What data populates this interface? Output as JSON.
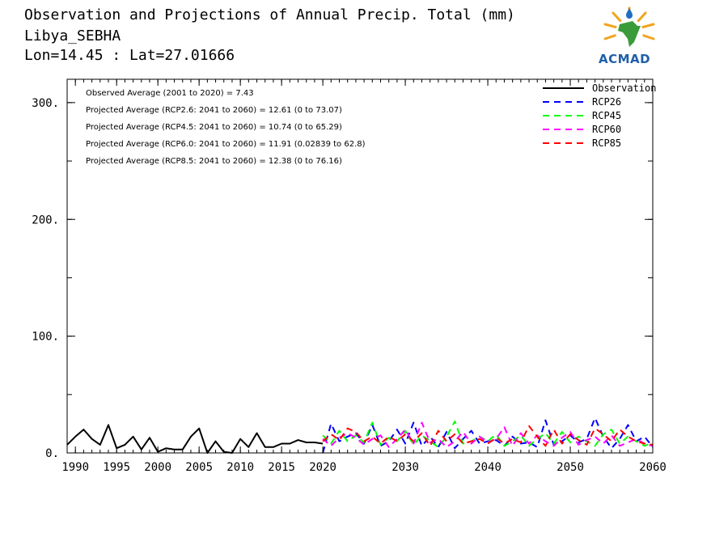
{
  "header": {
    "title": "Observation and Projections of Annual Precip. Total (mm)",
    "location": "Libya_SEBHA",
    "coords": "Lon=14.45 : Lat=27.01666"
  },
  "logo": {
    "text": "ACMAD"
  },
  "chart_data": {
    "type": "line",
    "title": "Observation and Projections of Annual Precip. Total (mm)",
    "xlim": [
      1989,
      2060
    ],
    "ylim": [
      0,
      320
    ],
    "xticks": [
      1990,
      1995,
      2000,
      2005,
      2010,
      2015,
      2020,
      2030,
      2040,
      2050,
      2060
    ],
    "yticks": [
      0,
      100,
      200,
      300
    ],
    "ytick_labels": [
      "0.",
      "100.",
      "200.",
      "300."
    ],
    "legend_position": "top-right",
    "annotations": [
      "Observed Average (2001 to 2020) = 7.43",
      "Projected Average (RCP2.6: 2041 to 2060) = 12.61 (0 to 73.07)",
      "Projected Average (RCP4.5: 2041 to 2060) = 10.74 (0 to 65.29)",
      "Projected Average (RCP6.0: 2041 to 2060) = 11.91 (0.02839 to 62.8)",
      "Projected Average (RCP8.5: 2041 to 2060) = 12.38 (0 to 76.16)"
    ],
    "series": [
      {
        "name": "Observation",
        "color": "#000000",
        "dashed": false,
        "x": [
          1989,
          1990,
          1991,
          1992,
          1993,
          1994,
          1995,
          1996,
          1997,
          1998,
          1999,
          2000,
          2001,
          2002,
          2003,
          2004,
          2005,
          2006,
          2007,
          2008,
          2009,
          2010,
          2011,
          2012,
          2013,
          2014,
          2015,
          2016,
          2017,
          2018,
          2019,
          2020
        ],
        "y": [
          7,
          14,
          20,
          12,
          7,
          24,
          4,
          7,
          14,
          3,
          13,
          1,
          4,
          3,
          3,
          14,
          21,
          0,
          10,
          1,
          0,
          12,
          5,
          17,
          5,
          5,
          8,
          8,
          11,
          9,
          9,
          8
        ]
      },
      {
        "name": "RCP26",
        "color": "#0000ff",
        "dashed": true,
        "x": [
          2020,
          2021,
          2022,
          2023,
          2024,
          2025,
          2026,
          2027,
          2028,
          2029,
          2030,
          2031,
          2032,
          2033,
          2034,
          2035,
          2036,
          2037,
          2038,
          2039,
          2040,
          2041,
          2042,
          2043,
          2044,
          2045,
          2046,
          2047,
          2048,
          2049,
          2050,
          2051,
          2052,
          2053,
          2054,
          2055,
          2056,
          2057,
          2058,
          2059,
          2060
        ],
        "y": [
          0,
          25,
          10,
          14,
          17,
          8,
          24,
          6,
          10,
          20,
          8,
          26,
          6,
          14,
          5,
          18,
          4,
          12,
          19,
          8,
          10,
          11,
          6,
          14,
          8,
          9,
          5,
          28,
          7,
          10,
          15,
          9,
          12,
          30,
          14,
          4,
          12,
          24,
          10,
          14,
          5
        ]
      },
      {
        "name": "RCP45",
        "color": "#00ff00",
        "dashed": true,
        "x": [
          2020,
          2021,
          2022,
          2023,
          2024,
          2025,
          2026,
          2027,
          2028,
          2029,
          2030,
          2031,
          2032,
          2033,
          2034,
          2035,
          2036,
          2037,
          2038,
          2039,
          2040,
          2041,
          2042,
          2043,
          2044,
          2045,
          2046,
          2047,
          2048,
          2049,
          2050,
          2051,
          2052,
          2053,
          2054,
          2055,
          2056,
          2057,
          2058,
          2059,
          2060
        ],
        "y": [
          15,
          8,
          19,
          10,
          15,
          9,
          26,
          7,
          13,
          10,
          19,
          7,
          15,
          10,
          5,
          14,
          27,
          8,
          10,
          14,
          10,
          16,
          6,
          10,
          15,
          6,
          12,
          17,
          8,
          18,
          9,
          14,
          10,
          6,
          16,
          20,
          8,
          14,
          10,
          6,
          9
        ]
      },
      {
        "name": "RCP60",
        "color": "#ff00ff",
        "dashed": true,
        "x": [
          2020,
          2021,
          2022,
          2023,
          2024,
          2025,
          2026,
          2027,
          2028,
          2029,
          2030,
          2031,
          2032,
          2033,
          2034,
          2035,
          2036,
          2037,
          2038,
          2039,
          2040,
          2041,
          2042,
          2043,
          2044,
          2045,
          2046,
          2047,
          2048,
          2049,
          2050,
          2051,
          2052,
          2053,
          2054,
          2055,
          2056,
          2057,
          2058,
          2059,
          2060
        ],
        "y": [
          12,
          6,
          13,
          17,
          13,
          7,
          12,
          15,
          5,
          12,
          20,
          8,
          26,
          9,
          12,
          5,
          10,
          18,
          8,
          14,
          9,
          12,
          22,
          6,
          17,
          8,
          15,
          10,
          6,
          13,
          18,
          7,
          11,
          14,
          8,
          15,
          6,
          9,
          12,
          8,
          6
        ]
      },
      {
        "name": "RCP85",
        "color": "#ff0000",
        "dashed": true,
        "x": [
          2020,
          2021,
          2022,
          2023,
          2024,
          2025,
          2026,
          2027,
          2028,
          2029,
          2030,
          2031,
          2032,
          2033,
          2034,
          2035,
          2036,
          2037,
          2038,
          2039,
          2040,
          2041,
          2042,
          2043,
          2044,
          2045,
          2046,
          2047,
          2048,
          2049,
          2050,
          2051,
          2052,
          2053,
          2054,
          2055,
          2056,
          2057,
          2058,
          2059,
          2060
        ],
        "y": [
          10,
          16,
          11,
          21,
          18,
          10,
          14,
          8,
          14,
          10,
          16,
          10,
          17,
          6,
          19,
          10,
          16,
          8,
          10,
          12,
          8,
          13,
          8,
          12,
          9,
          23,
          14,
          6,
          20,
          8,
          16,
          11,
          7,
          21,
          16,
          10,
          20,
          14,
          10,
          8,
          7
        ]
      }
    ]
  }
}
